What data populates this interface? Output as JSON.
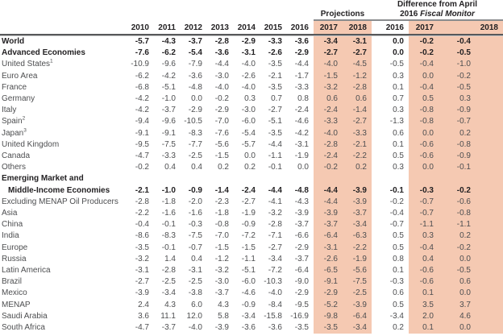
{
  "table": {
    "groups": {
      "projections": "Projections",
      "difference_line1": "Difference from April",
      "difference_line2_plain": "2016 ",
      "difference_line2_italic": "Fiscal Monitor"
    },
    "columns": [
      {
        "label": "2010",
        "shaded": false
      },
      {
        "label": "2011",
        "shaded": false
      },
      {
        "label": "2012",
        "shaded": false
      },
      {
        "label": "2013",
        "shaded": false
      },
      {
        "label": "2014",
        "shaded": false
      },
      {
        "label": "2015",
        "shaded": false
      },
      {
        "label": "2016",
        "shaded": false
      },
      {
        "label": "2017",
        "shaded": true
      },
      {
        "label": "2018",
        "shaded": true
      },
      {
        "label": "2016",
        "shaded": false
      },
      {
        "label": "2017",
        "shaded": true
      },
      {
        "label": "2018",
        "shaded": true
      }
    ],
    "colors": {
      "highlight": "#f5c9b2",
      "header_rule_dark": "#57585a",
      "header_rule_light": "#c6c7c8",
      "group_underline": "#8a8c8e",
      "text_normal": "#4d4e50",
      "text_bold": "#232123"
    },
    "rows": [
      {
        "label": "World",
        "bold": true,
        "indent": 0,
        "values": [
          "-5.7",
          "-4.3",
          "-3.7",
          "-2.8",
          "-2.9",
          "-3.3",
          "-3.6",
          "-3.4",
          "-3.1",
          "0.0",
          "-0.2",
          "-0.4"
        ]
      },
      {
        "label": "Advanced Economies",
        "bold": true,
        "indent": 0,
        "values": [
          "-7.6",
          "-6.2",
          "-5.4",
          "-3.6",
          "-3.1",
          "-2.6",
          "-2.9",
          "-2.7",
          "-2.7",
          "0.0",
          "-0.2",
          "-0.5"
        ]
      },
      {
        "label": "United States",
        "sup": "1",
        "bold": false,
        "indent": 1,
        "values": [
          "-10.9",
          "-9.6",
          "-7.9",
          "-4.4",
          "-4.0",
          "-3.5",
          "-4.4",
          "-4.0",
          "-4.5",
          "-0.5",
          "-0.4",
          "-1.0"
        ]
      },
      {
        "label": "Euro Area",
        "bold": false,
        "indent": 1,
        "values": [
          "-6.2",
          "-4.2",
          "-3.6",
          "-3.0",
          "-2.6",
          "-2.1",
          "-1.7",
          "-1.5",
          "-1.2",
          "0.3",
          "0.0",
          "-0.2"
        ]
      },
      {
        "label": "France",
        "bold": false,
        "indent": 2,
        "values": [
          "-6.8",
          "-5.1",
          "-4.8",
          "-4.0",
          "-4.0",
          "-3.5",
          "-3.3",
          "-3.2",
          "-2.8",
          "0.1",
          "-0.4",
          "-0.5"
        ]
      },
      {
        "label": "Germany",
        "bold": false,
        "indent": 2,
        "values": [
          "-4.2",
          "-1.0",
          "0.0",
          "-0.2",
          "0.3",
          "0.7",
          "0.8",
          "0.6",
          "0.6",
          "0.7",
          "0.5",
          "0.3"
        ]
      },
      {
        "label": "Italy",
        "bold": false,
        "indent": 2,
        "values": [
          "-4.2",
          "-3.7",
          "-2.9",
          "-2.9",
          "-3.0",
          "-2.7",
          "-2.4",
          "-2.4",
          "-1.4",
          "0.3",
          "-0.8",
          "-0.9"
        ]
      },
      {
        "label": "Spain",
        "sup": "2",
        "bold": false,
        "indent": 2,
        "values": [
          "-9.4",
          "-9.6",
          "-10.5",
          "-7.0",
          "-6.0",
          "-5.1",
          "-4.6",
          "-3.3",
          "-2.7",
          "-1.3",
          "-0.8",
          "-0.7"
        ]
      },
      {
        "label": "Japan",
        "sup": "3",
        "bold": false,
        "indent": 1,
        "values": [
          "-9.1",
          "-9.1",
          "-8.3",
          "-7.6",
          "-5.4",
          "-3.5",
          "-4.2",
          "-4.0",
          "-3.3",
          "0.6",
          "0.0",
          "0.2"
        ]
      },
      {
        "label": "United Kingdom",
        "bold": false,
        "indent": 1,
        "values": [
          "-9.5",
          "-7.5",
          "-7.7",
          "-5.6",
          "-5.7",
          "-4.4",
          "-3.1",
          "-2.8",
          "-2.1",
          "0.1",
          "-0.6",
          "-0.8"
        ]
      },
      {
        "label": "Canada",
        "bold": false,
        "indent": 1,
        "values": [
          "-4.7",
          "-3.3",
          "-2.5",
          "-1.5",
          "0.0",
          "-1.1",
          "-1.9",
          "-2.4",
          "-2.2",
          "0.5",
          "-0.6",
          "-0.9"
        ]
      },
      {
        "label": "Others",
        "bold": false,
        "indent": 1,
        "values": [
          "-0.2",
          "0.4",
          "0.4",
          "0.2",
          "0.2",
          "-0.1",
          "0.0",
          "-0.2",
          "0.2",
          "0.3",
          "0.0",
          "-0.1"
        ]
      },
      {
        "label": "Emerging Market and",
        "label2": "Middle-Income Economies",
        "bold": true,
        "indent": 0,
        "values": [
          "-2.1",
          "-1.0",
          "-0.9",
          "-1.4",
          "-2.4",
          "-4.4",
          "-4.8",
          "-4.4",
          "-3.9",
          "-0.1",
          "-0.3",
          "-0.2"
        ]
      },
      {
        "label": "Excluding MENAP Oil Producers",
        "bold": false,
        "indent": 1,
        "values": [
          "-2.8",
          "-1.8",
          "-2.0",
          "-2.3",
          "-2.7",
          "-4.1",
          "-4.3",
          "-4.4",
          "-3.9",
          "-0.2",
          "-0.7",
          "-0.6"
        ]
      },
      {
        "label": "Asia",
        "bold": false,
        "indent": 1,
        "values": [
          "-2.2",
          "-1.6",
          "-1.6",
          "-1.8",
          "-1.9",
          "-3.2",
          "-3.9",
          "-3.9",
          "-3.7",
          "-0.4",
          "-0.7",
          "-0.8"
        ]
      },
      {
        "label": "China",
        "bold": false,
        "indent": 2,
        "values": [
          "-0.4",
          "-0.1",
          "-0.3",
          "-0.8",
          "-0.9",
          "-2.8",
          "-3.7",
          "-3.7",
          "-3.4",
          "-0.7",
          "-1.1",
          "-1.1"
        ]
      },
      {
        "label": "India",
        "bold": false,
        "indent": 2,
        "values": [
          "-8.6",
          "-8.3",
          "-7.5",
          "-7.0",
          "-7.2",
          "-7.1",
          "-6.6",
          "-6.4",
          "-6.3",
          "0.5",
          "0.3",
          "0.2"
        ]
      },
      {
        "label": "Europe",
        "bold": false,
        "indent": 1,
        "values": [
          "-3.5",
          "-0.1",
          "-0.7",
          "-1.5",
          "-1.5",
          "-2.7",
          "-2.9",
          "-3.1",
          "-2.2",
          "0.5",
          "-0.4",
          "-0.2"
        ]
      },
      {
        "label": "Russia",
        "bold": false,
        "indent": 2,
        "values": [
          "-3.2",
          "1.4",
          "0.4",
          "-1.2",
          "-1.1",
          "-3.4",
          "-3.7",
          "-2.6",
          "-1.9",
          "0.8",
          "0.4",
          "0.0"
        ]
      },
      {
        "label": "Latin America",
        "bold": false,
        "indent": 1,
        "values": [
          "-3.1",
          "-2.8",
          "-3.1",
          "-3.2",
          "-5.1",
          "-7.2",
          "-6.4",
          "-6.5",
          "-5.6",
          "0.1",
          "-0.6",
          "-0.5"
        ]
      },
      {
        "label": "Brazil",
        "bold": false,
        "indent": 2,
        "values": [
          "-2.7",
          "-2.5",
          "-2.5",
          "-3.0",
          "-6.0",
          "-10.3",
          "-9.0",
          "-9.1",
          "-7.5",
          "-0.3",
          "-0.6",
          "0.6"
        ]
      },
      {
        "label": "Mexico",
        "bold": false,
        "indent": 2,
        "values": [
          "-3.9",
          "-3.4",
          "-3.8",
          "-3.7",
          "-4.6",
          "-4.0",
          "-2.9",
          "-2.9",
          "-2.5",
          "0.6",
          "0.1",
          "0.0"
        ]
      },
      {
        "label": "MENAP",
        "bold": false,
        "indent": 1,
        "values": [
          "2.4",
          "4.3",
          "6.0",
          "4.3",
          "-0.9",
          "-8.4",
          "-9.5",
          "-5.2",
          "-3.9",
          "0.5",
          "3.5",
          "3.7"
        ]
      },
      {
        "label": "Saudi Arabia",
        "bold": false,
        "indent": 2,
        "values": [
          "3.6",
          "11.1",
          "12.0",
          "5.8",
          "-3.4",
          "-15.8",
          "-16.9",
          "-9.8",
          "-6.4",
          "-3.4",
          "2.0",
          "4.6"
        ]
      },
      {
        "label": "South Africa",
        "bold": false,
        "indent": 1,
        "values": [
          "-4.7",
          "-3.7",
          "-4.0",
          "-3.9",
          "-3.6",
          "-3.6",
          "-3.5",
          "-3.5",
          "-3.4",
          "0.2",
          "0.1",
          "0.0"
        ]
      }
    ]
  }
}
